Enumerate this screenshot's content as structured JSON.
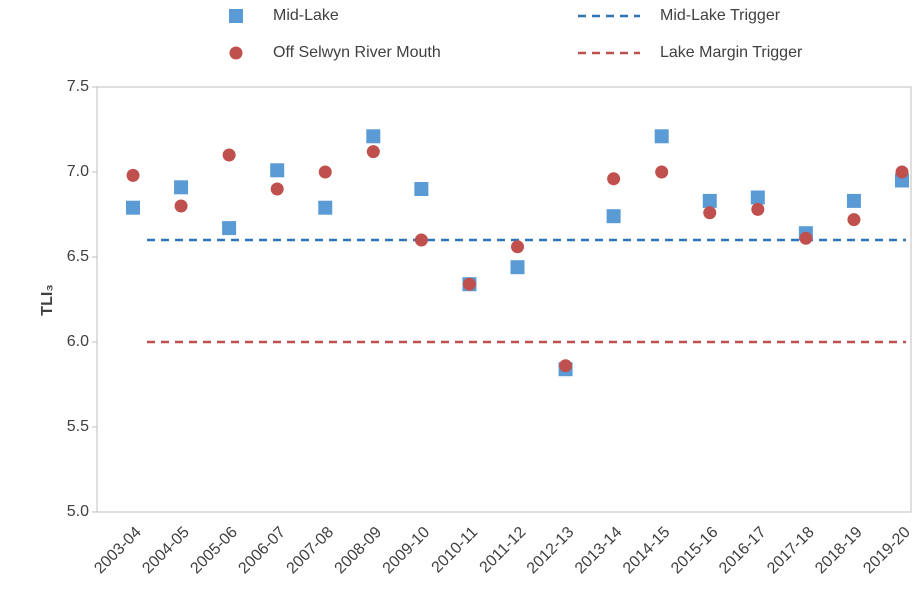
{
  "chart_data": {
    "type": "scatter",
    "ylabel": "TLI₃",
    "categories": [
      "2003-04",
      "2004-05",
      "2005-06",
      "2006-07",
      "2007-08",
      "2008-09",
      "2009-10",
      "2010-11",
      "2011-12",
      "2012-13",
      "2013-14",
      "2014-15",
      "2015-16",
      "2016-17",
      "2017-18",
      "2018-19",
      "2019-20"
    ],
    "series": [
      {
        "name": "Mid-Lake",
        "color": "#5b9bd5",
        "marker": "square",
        "values": [
          6.79,
          6.91,
          6.67,
          7.01,
          6.79,
          7.21,
          6.9,
          6.34,
          6.44,
          5.84,
          6.74,
          7.21,
          6.83,
          6.85,
          6.64,
          6.83,
          6.95
        ]
      },
      {
        "name": "Off Selwyn River Mouth",
        "color": "#c0504d",
        "marker": "circle",
        "values": [
          6.98,
          6.8,
          7.1,
          6.9,
          7.0,
          7.12,
          6.6,
          6.34,
          6.56,
          5.86,
          6.96,
          7.0,
          6.76,
          6.78,
          6.61,
          6.72,
          7.0
        ]
      }
    ],
    "reference_lines": [
      {
        "name": "Mid-Lake Trigger",
        "color": "#2e75b6",
        "value": 6.6
      },
      {
        "name": "Lake Margin Trigger",
        "color": "#c0504d",
        "value": 6.0
      }
    ],
    "ylim": [
      5.0,
      7.5
    ],
    "yticks": [
      {
        "value": 5,
        "label": "5.0"
      },
      5.5,
      {
        "value": 6,
        "label": "6.0"
      },
      6.5,
      {
        "value": 7,
        "label": "7.0"
      },
      7.5
    ]
  }
}
